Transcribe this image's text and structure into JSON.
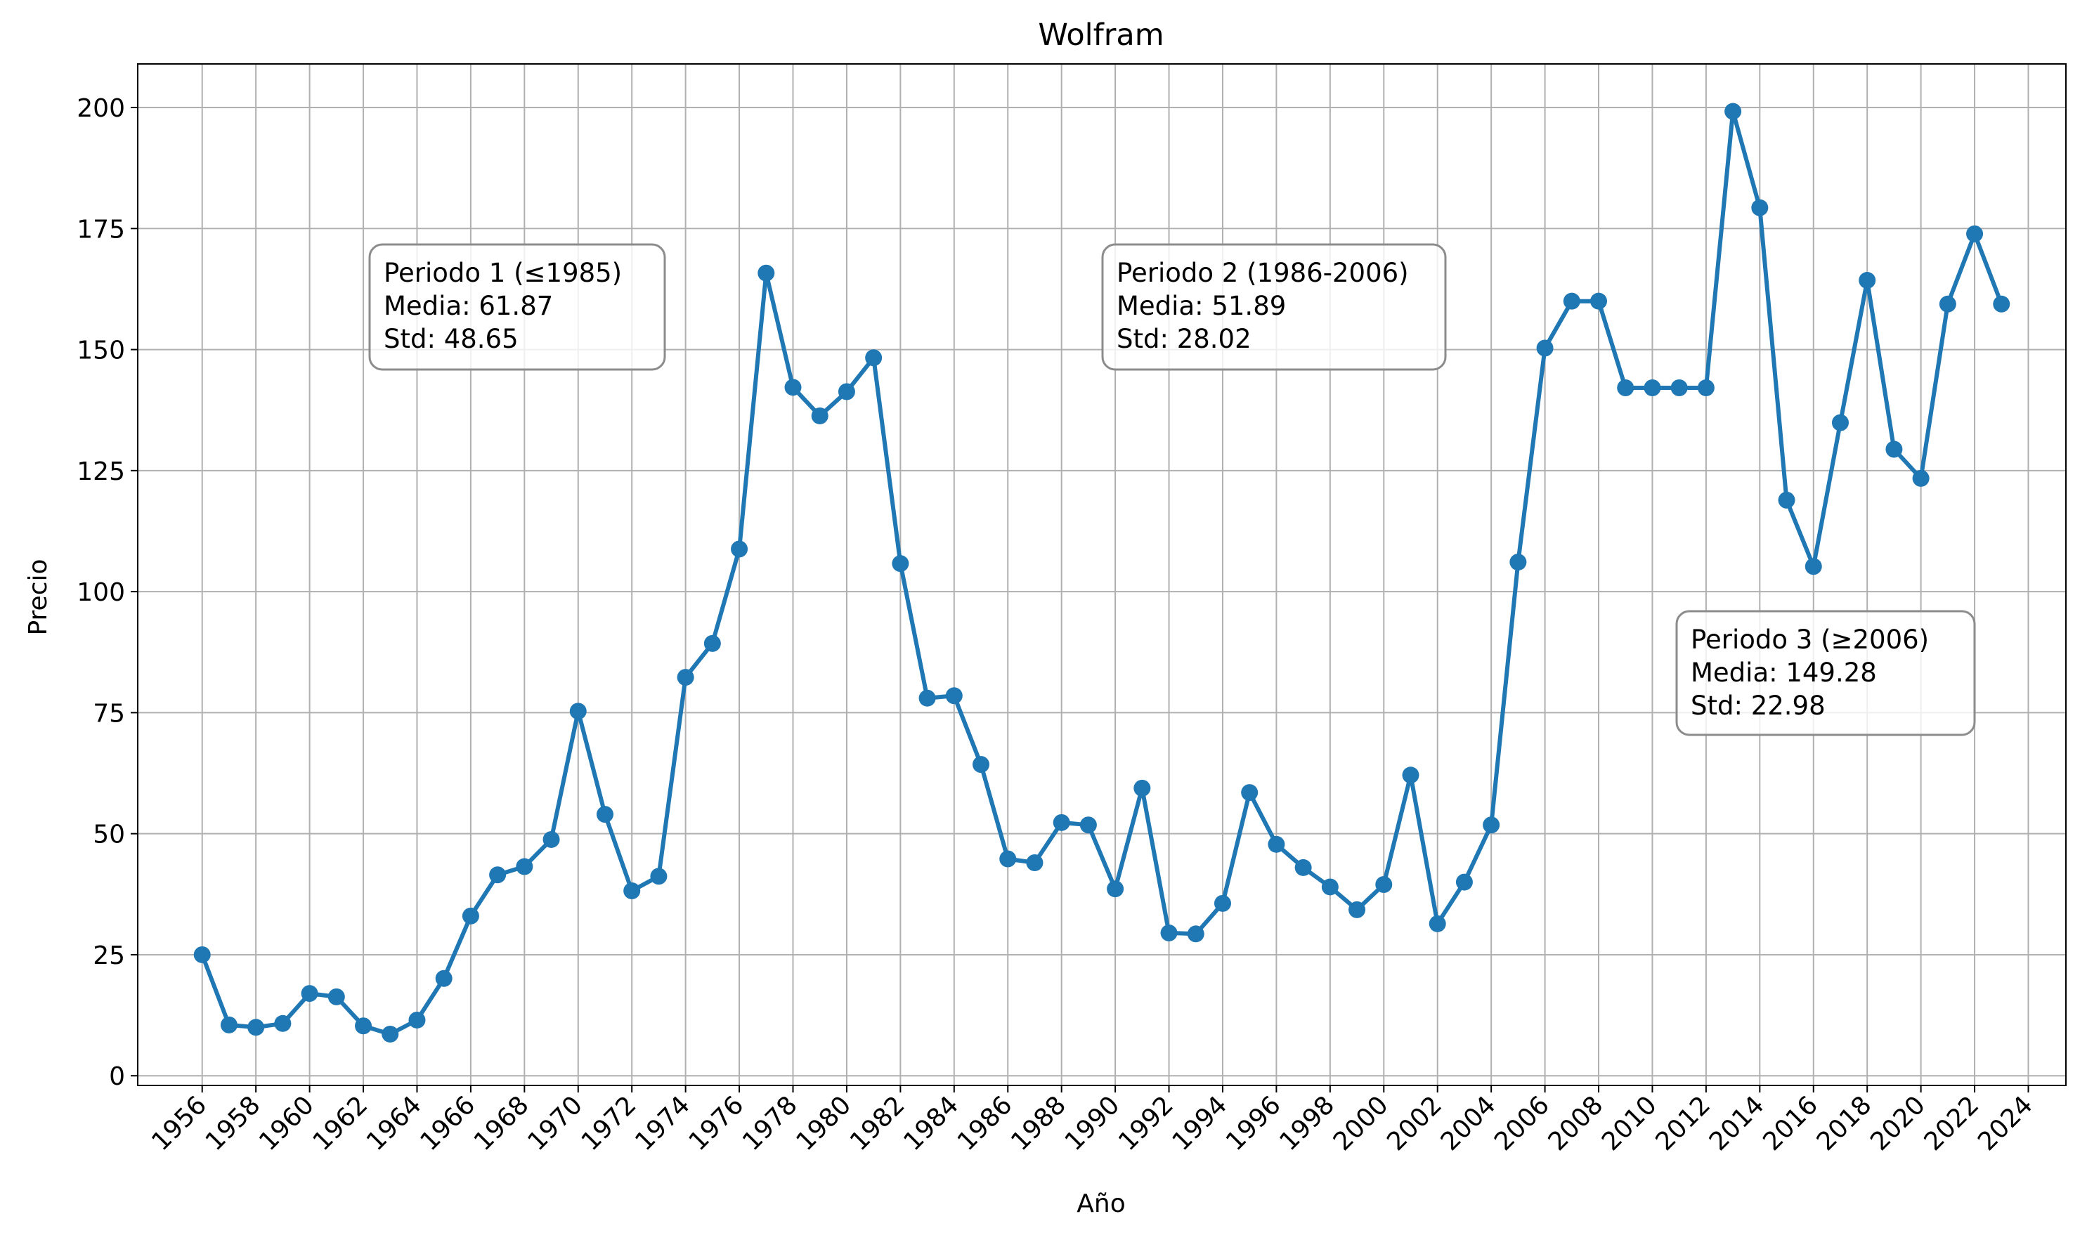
{
  "chart_data": {
    "type": "line",
    "title": "Wolfram",
    "xlabel": "Año",
    "ylabel": "Precio",
    "xlim": [
      1953.6,
      2025.4
    ],
    "ylim": [
      -2,
      209
    ],
    "grid": true,
    "legend": "none",
    "x_ticks": [
      1956,
      1958,
      1960,
      1962,
      1964,
      1966,
      1968,
      1970,
      1972,
      1974,
      1976,
      1978,
      1980,
      1982,
      1984,
      1986,
      1988,
      1990,
      1992,
      1994,
      1996,
      1998,
      2000,
      2002,
      2004,
      2006,
      2008,
      2010,
      2012,
      2014,
      2016,
      2018,
      2020,
      2022,
      2024
    ],
    "y_ticks": [
      0,
      25,
      50,
      75,
      100,
      125,
      150,
      175,
      200
    ],
    "series": [
      {
        "color": "#1f77b4",
        "x": [
          1956,
          1957,
          1958,
          1959,
          1960,
          1961,
          1962,
          1963,
          1964,
          1965,
          1966,
          1967,
          1968,
          1969,
          1970,
          1971,
          1972,
          1973,
          1974,
          1975,
          1976,
          1977,
          1978,
          1979,
          1980,
          1981,
          1982,
          1983,
          1984,
          1985,
          1986,
          1987,
          1988,
          1989,
          1990,
          1991,
          1992,
          1993,
          1994,
          1995,
          1996,
          1997,
          1998,
          1999,
          2000,
          2001,
          2002,
          2003,
          2004,
          2005,
          2006,
          2007,
          2008,
          2009,
          2010,
          2011,
          2012,
          2013,
          2014,
          2015,
          2016,
          2017,
          2018,
          2019,
          2020,
          2021,
          2022,
          2023
        ],
        "values": [
          25.0,
          10.5,
          10.0,
          10.8,
          17.0,
          16.3,
          10.3,
          8.6,
          11.5,
          20.1,
          33.0,
          41.5,
          43.2,
          48.8,
          75.3,
          54.0,
          38.2,
          41.2,
          82.3,
          89.3,
          108.8,
          165.8,
          142.2,
          136.3,
          141.3,
          148.3,
          105.8,
          78.0,
          78.5,
          64.3,
          44.8,
          44.0,
          52.3,
          51.8,
          38.6,
          59.4,
          29.5,
          29.3,
          35.6,
          58.5,
          47.8,
          43.0,
          39.0,
          34.3,
          39.5,
          62.1,
          31.4,
          40.0,
          51.8,
          106.1,
          150.3,
          160.0,
          160.0,
          142.1,
          142.1,
          142.1,
          142.1,
          199.2,
          179.3,
          118.9,
          105.2,
          134.9,
          164.3,
          129.4,
          123.4,
          159.4,
          173.9,
          159.4
        ]
      }
    ],
    "annotations": [
      {
        "lines": [
          "Periodo 1 (≤1985)",
          "Media: 61.87",
          "Std: 48.65"
        ]
      },
      {
        "lines": [
          "Periodo 2 (1986-2006)",
          "Media: 51.89",
          "Std: 28.02"
        ]
      },
      {
        "lines": [
          "Periodo 3 (≥2006)",
          "Media: 149.28",
          "Std: 22.98"
        ]
      }
    ]
  }
}
